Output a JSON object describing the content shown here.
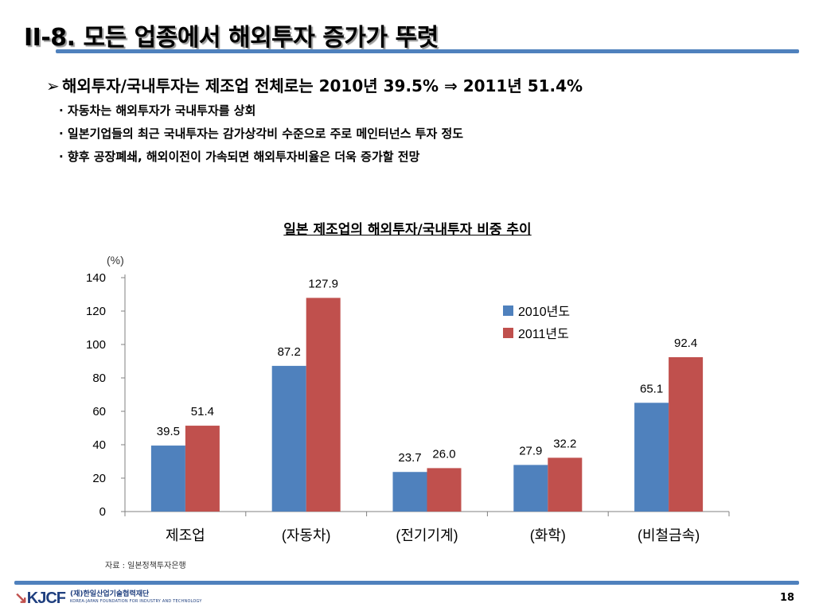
{
  "slide": {
    "title": "II-8. 모든 업종에서 해외투자 증가가  뚜렷",
    "main_bullet": "해외투자/국내투자는 제조업 전체로는 2010년 39.5% ⇒ 2011년 51.4%",
    "sub_bullets": [
      "· 자동차는 해외투자가 국내투자를 상회",
      "· 일본기업들의 최근 국내투자는 감가상각비 수준으로 주로 메인터넌스 투자 정도",
      "· 향후 공장폐쇄, 해외이전이 가속되면 해외투자비율은 더욱 증가할 전망"
    ],
    "source": "자료 : 일본정책투자은행",
    "page_number": "18",
    "logo": {
      "mark": "KJCF",
      "name_kr": "(재)한일산업기술협력재단",
      "name_en": "KOREA-JAPAN FOUNDATION FOR INDUSTRY AND TECHNOLOGY"
    }
  },
  "chart_data": {
    "type": "bar",
    "title": "일본 제조업의 해외투자/국내투자 비중 추이",
    "unit_label": "(%)",
    "categories": [
      "제조업",
      "(자동차)",
      "(전기기계)",
      "(화학)",
      "(비철금속)"
    ],
    "series": [
      {
        "name": "2010년도",
        "color": "#4f81bd",
        "values": [
          39.5,
          87.2,
          23.7,
          27.9,
          65.1
        ]
      },
      {
        "name": "2011년도",
        "color": "#c0504d",
        "values": [
          51.4,
          127.9,
          26.0,
          32.2,
          92.4
        ]
      }
    ],
    "data_labels": [
      [
        "39.5",
        "87.2",
        "23.7",
        "27.9",
        "65.1"
      ],
      [
        "51.4",
        "127.9",
        "26.0",
        "32.2",
        "92.4"
      ]
    ],
    "yticks": [
      "0",
      "20",
      "40",
      "60",
      "80",
      "100",
      "120",
      "140"
    ],
    "ylim": [
      0,
      140
    ],
    "grid": false,
    "legend_position": "top-right"
  }
}
